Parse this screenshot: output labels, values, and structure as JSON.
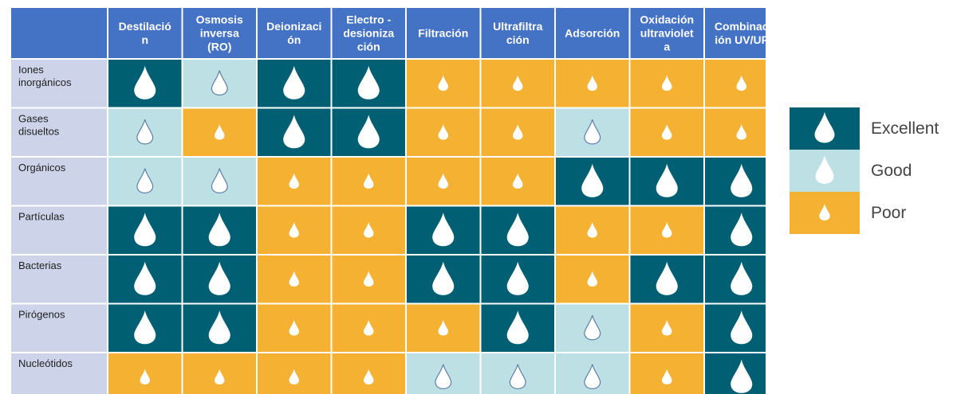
{
  "chart_data": {
    "type": "table",
    "columns": [
      [
        "Destilació",
        "n"
      ],
      [
        "Osmosis",
        "inversa",
        "(RO)"
      ],
      [
        "Deionizaci",
        "ón"
      ],
      [
        "Electro -",
        "desioniza",
        "ción"
      ],
      [
        "Filtración"
      ],
      [
        "Ultrafiltra",
        "ción"
      ],
      [
        "Adsorción"
      ],
      [
        "Oxidación",
        "ultraviolet",
        "a"
      ],
      [
        "Combinac",
        "ión UV/UF"
      ]
    ],
    "rows": [
      [
        "Iones",
        "inorgánicos"
      ],
      [
        "Gases",
        "disueltos"
      ],
      [
        "Orgánicos"
      ],
      [
        "Partículas"
      ],
      [
        "Bacterias"
      ],
      [
        "Pirógenos"
      ],
      [
        "Nucleótidos"
      ]
    ],
    "ratings": [
      [
        "Excellent",
        "Good",
        "Excellent",
        "Excellent",
        "Poor",
        "Poor",
        "Poor",
        "Poor",
        "Poor"
      ],
      [
        "Good",
        "Poor",
        "Excellent",
        "Excellent",
        "Poor",
        "Poor",
        "Good",
        "Poor",
        "Poor"
      ],
      [
        "Good",
        "Good",
        "Poor",
        "Poor",
        "Poor",
        "Poor",
        "Excellent",
        "Excellent",
        "Excellent"
      ],
      [
        "Excellent",
        "Excellent",
        "Poor",
        "Poor",
        "Excellent",
        "Excellent",
        "Poor",
        "Poor",
        "Excellent"
      ],
      [
        "Excellent",
        "Excellent",
        "Poor",
        "Poor",
        "Excellent",
        "Excellent",
        "Poor",
        "Excellent",
        "Excellent"
      ],
      [
        "Excellent",
        "Excellent",
        "Poor",
        "Poor",
        "Poor",
        "Excellent",
        "Good",
        "Poor",
        "Excellent"
      ],
      [
        "Poor",
        "Poor",
        "Poor",
        "Poor",
        "Good",
        "Good",
        "Good",
        "Poor",
        "Excellent"
      ]
    ],
    "legend": [
      {
        "label": "Excellent",
        "level": "Excellent"
      },
      {
        "label": "Good",
        "level": "Good"
      },
      {
        "label": "Poor",
        "level": "Poor"
      }
    ],
    "legend_placement": "right",
    "colors": {
      "Excellent": "#005f73",
      "Good": "#bde0e4",
      "Poor": "#f4b132",
      "header": "#4472c4",
      "row_label": "#cdd4ea",
      "grid": "#ffffff"
    }
  }
}
